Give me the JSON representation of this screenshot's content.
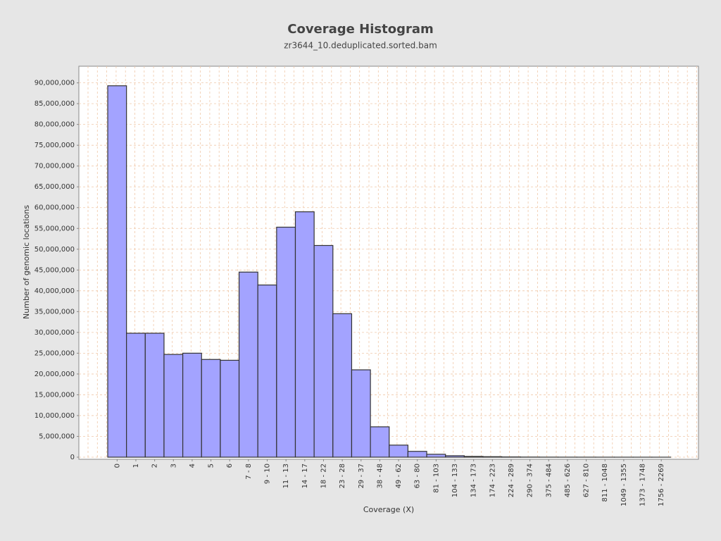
{
  "chart_data": {
    "type": "bar",
    "title": "Coverage Histogram",
    "subtitle": "zr3644_10.deduplicated.sorted.bam",
    "x_label": "Coverage (X)",
    "y_label": "Number of genomic locations",
    "categories": [
      "0",
      "1",
      "2",
      "3",
      "4",
      "5",
      "6",
      "7 - 8",
      "9 - 10",
      "11 - 13",
      "14 - 17",
      "18 - 22",
      "23 - 28",
      "29 - 37",
      "38 - 48",
      "49 - 62",
      "63 - 80",
      "81 - 103",
      "104 - 133",
      "134 - 173",
      "174 - 223",
      "224 - 289",
      "290 - 374",
      "375 - 484",
      "485 - 626",
      "627 - 810",
      "811 - 1048",
      "1049 - 1355",
      "1373 - 1748",
      "1756 - 2269"
    ],
    "values": [
      89300000,
      29800000,
      29800000,
      24700000,
      25000000,
      23500000,
      23300000,
      44500000,
      41400000,
      55300000,
      59000000,
      50900000,
      34500000,
      21000000,
      7300000,
      2900000,
      1400000,
      700000,
      350000,
      180000,
      120000,
      60000,
      30000,
      15000,
      8000,
      4000,
      2000,
      1000,
      500,
      200
    ],
    "color": "#a3a3ff",
    "edge_color": "#333333",
    "ylim": [
      0,
      94000000
    ],
    "yticks": [
      0,
      {
        "value": 5000000,
        "label": "5,000,000"
      },
      {
        "value": 10000000,
        "label": "10,000,000"
      },
      {
        "value": 15000000,
        "label": "15,000,000"
      },
      {
        "value": 20000000,
        "label": "20,000,000"
      },
      {
        "value": 25000000,
        "label": "25,000,000"
      },
      {
        "value": 30000000,
        "label": "30,000,000"
      },
      {
        "value": 35000000,
        "label": "35,000,000"
      },
      {
        "value": 40000000,
        "label": "40,000,000"
      },
      {
        "value": 45000000,
        "label": "45,000,000"
      },
      {
        "value": 50000000,
        "label": "50,000,000"
      },
      {
        "value": 55000000,
        "label": "55,000,000"
      },
      {
        "value": 60000000,
        "label": "60,000,000"
      },
      {
        "value": 65000000,
        "label": "65,000,000"
      },
      {
        "value": 70000000,
        "label": "70,000,000"
      },
      {
        "value": 75000000,
        "label": "75,000,000"
      },
      {
        "value": 80000000,
        "label": "80,000,000"
      },
      {
        "value": 85000000,
        "label": "85,000,000"
      },
      {
        "value": 90000000,
        "label": "90,000,000"
      }
    ],
    "grid": true
  }
}
